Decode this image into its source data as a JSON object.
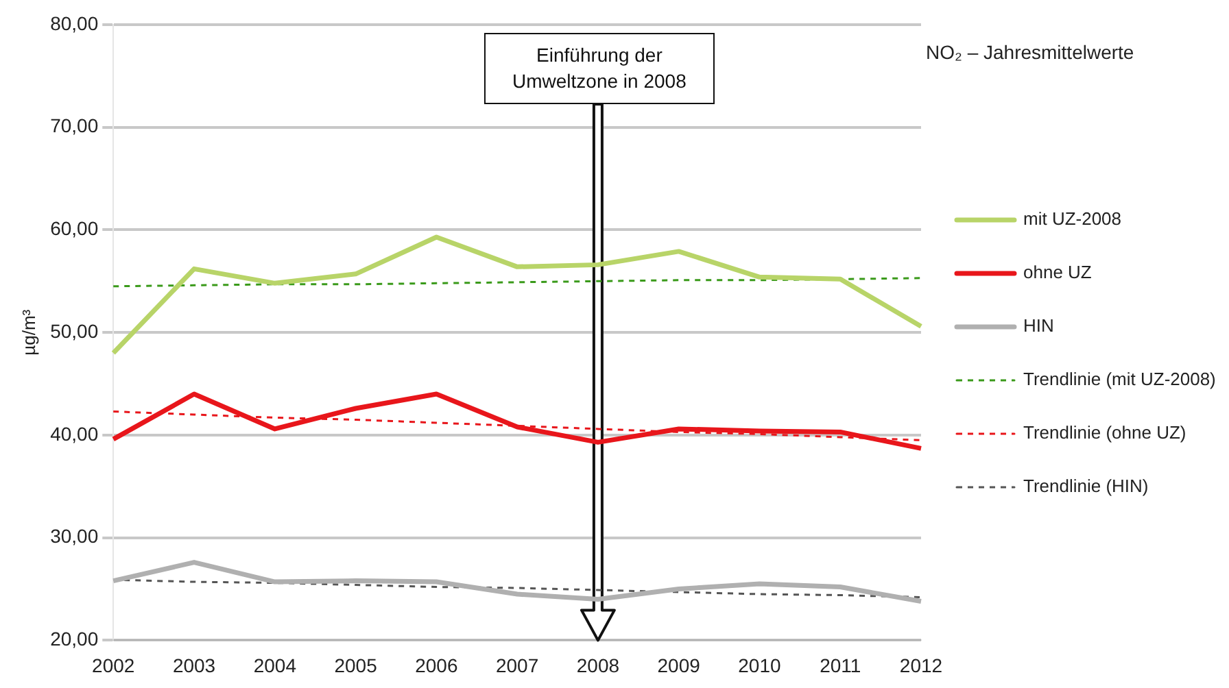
{
  "chart_data": {
    "type": "line",
    "title": "NO₂ – Jahresmittelwerte",
    "ylabel": "µg/m³",
    "categories": [
      "2002",
      "2003",
      "2004",
      "2005",
      "2006",
      "2007",
      "2008",
      "2009",
      "2010",
      "2011",
      "2012"
    ],
    "ylim": [
      20,
      80
    ],
    "yticks": [
      {
        "value": 20,
        "label": "20,00"
      },
      {
        "value": 30,
        "label": "30,00"
      },
      {
        "value": 40,
        "label": "40,00"
      },
      {
        "value": 50,
        "label": "50,00"
      },
      {
        "value": 60,
        "label": "60,00"
      },
      {
        "value": 70,
        "label": "70,00"
      },
      {
        "value": 80,
        "label": "80,00"
      }
    ],
    "grid": "y",
    "legend": "right",
    "marker": "none",
    "series": [
      {
        "name": "mit UZ-2008",
        "color": "#b8d468",
        "values": [
          48.0,
          56.2,
          54.8,
          55.7,
          59.3,
          56.4,
          56.6,
          57.9,
          55.4,
          55.2,
          50.6
        ]
      },
      {
        "name": "ohne UZ",
        "color": "#e8161b",
        "values": [
          39.6,
          44.0,
          40.6,
          42.6,
          44.0,
          40.8,
          39.3,
          40.6,
          40.4,
          40.3,
          38.7
        ]
      },
      {
        "name": "HIN",
        "color": "#b0b0b0",
        "values": [
          25.8,
          27.6,
          25.7,
          25.8,
          25.7,
          24.5,
          24.0,
          25.0,
          25.5,
          25.2,
          23.8
        ]
      },
      {
        "name": "Trendlinie (mit UZ-2008)",
        "type": "line",
        "line_style": "dashed",
        "color": "#3a9a1a",
        "values": [
          54.5,
          54.6,
          54.7,
          54.7,
          54.8,
          54.9,
          55.0,
          55.1,
          55.1,
          55.2,
          55.3
        ]
      },
      {
        "name": "Trendlinie (ohne UZ)",
        "type": "line",
        "line_style": "dashed",
        "color": "#e8161b",
        "values": [
          42.3,
          42.0,
          41.7,
          41.5,
          41.2,
          40.9,
          40.6,
          40.3,
          40.1,
          39.8,
          39.5
        ]
      },
      {
        "name": "Trendlinie (HIN)",
        "type": "line",
        "line_style": "dashed",
        "color": "#555555",
        "values": [
          25.9,
          25.7,
          25.6,
          25.4,
          25.2,
          25.1,
          24.9,
          24.7,
          24.5,
          24.4,
          24.2
        ]
      }
    ],
    "ref_lines": [
      {
        "axis": "x",
        "value": "2008",
        "label": "Einführung der Umweltzone in 2008"
      }
    ]
  }
}
